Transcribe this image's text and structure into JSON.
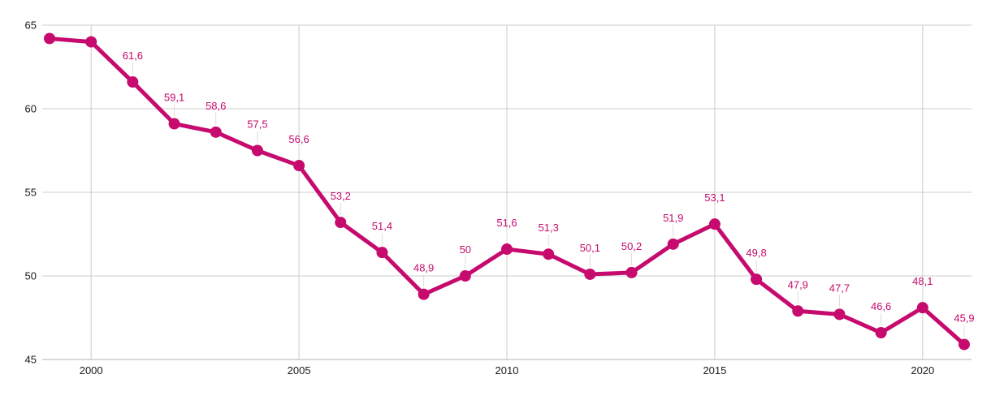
{
  "chart_data": {
    "type": "line",
    "title": "",
    "xlabel": "",
    "ylabel": "",
    "x": [
      1999,
      2000,
      2001,
      2002,
      2003,
      2004,
      2005,
      2006,
      2007,
      2008,
      2009,
      2010,
      2011,
      2012,
      2013,
      2014,
      2015,
      2016,
      2017,
      2018,
      2019,
      2020,
      2021
    ],
    "values": [
      64.2,
      64.0,
      61.6,
      59.1,
      58.6,
      57.5,
      56.6,
      53.2,
      51.4,
      48.9,
      50,
      51.6,
      51.3,
      50.1,
      50.2,
      51.9,
      53.1,
      49.8,
      47.9,
      47.7,
      46.6,
      48.1,
      45.9
    ],
    "point_labels": [
      "",
      "",
      "61,6",
      "59,1",
      "58,6",
      "57,5",
      "56,6",
      "53,2",
      "51,4",
      "48,9",
      "50",
      "51,6",
      "51,3",
      "50,1",
      "50,2",
      "51,9",
      "53,1",
      "49,8",
      "47,9",
      "47,7",
      "46,6",
      "48,1",
      "45,9"
    ],
    "xticks": [
      "2000",
      "2005",
      "2010",
      "2015",
      "2020"
    ],
    "yticks": [
      "45",
      "50",
      "55",
      "60",
      "65"
    ],
    "xlim": [
      1999,
      2021
    ],
    "ylim": [
      45,
      65
    ],
    "grid": true,
    "legend_position": "none",
    "decimal_separator": "comma",
    "colors": {
      "series": "#c60a6e",
      "gridline": "#cccccc",
      "baseline": "#b3b3b3",
      "axis_text": "#1a1a1a",
      "annotation_stem": "#dcdcdc",
      "background": "#ffffff"
    }
  }
}
